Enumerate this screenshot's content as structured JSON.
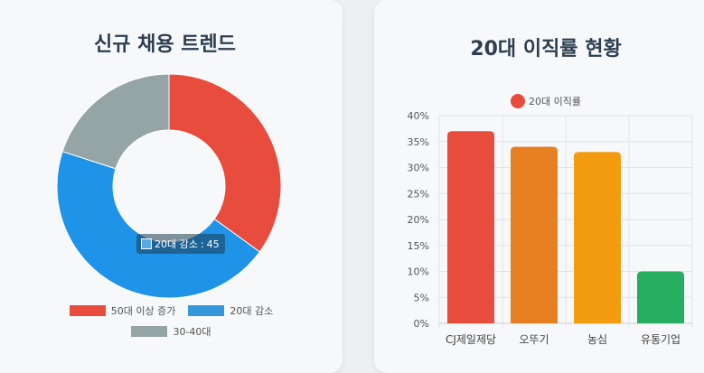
{
  "left_card": {
    "title": "신규 채용 트렌드"
  },
  "right_card": {
    "title": "20대 이직률 현황"
  },
  "tooltip": {
    "label": "20대 감소",
    "value": "45"
  },
  "colors": {
    "title": "#2c3e50",
    "card_bg": "#f7f8fa"
  },
  "chart_data": [
    {
      "type": "pie",
      "title": "신규 채용 트렌드",
      "variant": "doughnut",
      "labels": [
        "50대 이상 증가",
        "20대 감소",
        "30-40대"
      ],
      "values": [
        35,
        45,
        20
      ],
      "colors": [
        "#e74c3c",
        "#1e93e8",
        "#95a5a6"
      ],
      "legend_colors": [
        "#e74c3c",
        "#3498db",
        "#95a5a6"
      ],
      "legend": "bottom"
    },
    {
      "type": "bar",
      "title": "20대 이직률 현황",
      "categories": [
        "CJ제일제당",
        "오뚜기",
        "농심",
        "유통기업"
      ],
      "series": [
        {
          "name": "20대 이직률",
          "values": [
            37,
            34,
            33,
            10
          ]
        }
      ],
      "bar_colors": [
        "#e74c3c",
        "#e67e22",
        "#f39c12",
        "#27ae60"
      ],
      "ylim": [
        0,
        40
      ],
      "yticks": [
        0,
        5,
        10,
        15,
        20,
        25,
        30,
        35,
        40
      ],
      "ytick_suffix": "%",
      "grid": true,
      "legend": "top"
    }
  ]
}
